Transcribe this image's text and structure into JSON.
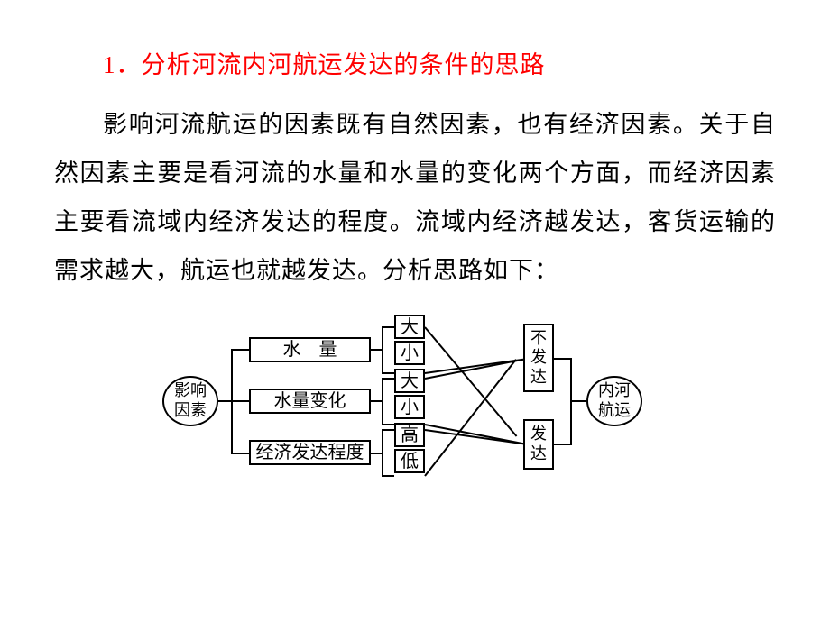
{
  "heading": "1．分析河流内河航运发达的条件的思路",
  "paragraph": "影响河流航运的因素既有自然因素，也有经济因素。关于自然因素主要是看河流的水量和水量的变化两个方面，而经济因素主要看流域内经济发达的程度。流域内经济越发达，客货运输的需求越大，航运也就越发达。分析思路如下：",
  "diagram": {
    "root": "影响\n因素",
    "factors": [
      "水　量",
      "水量变化",
      "经济发达程度"
    ],
    "levels": [
      "大",
      "小",
      "大",
      "小",
      "高",
      "低"
    ],
    "outcomes": [
      "不\n发\n达",
      "发\n达"
    ],
    "result": "内河\n航运",
    "colors": {
      "border": "#000000",
      "text": "#000000",
      "bg": "#ffffff"
    },
    "fontsize": 20
  }
}
